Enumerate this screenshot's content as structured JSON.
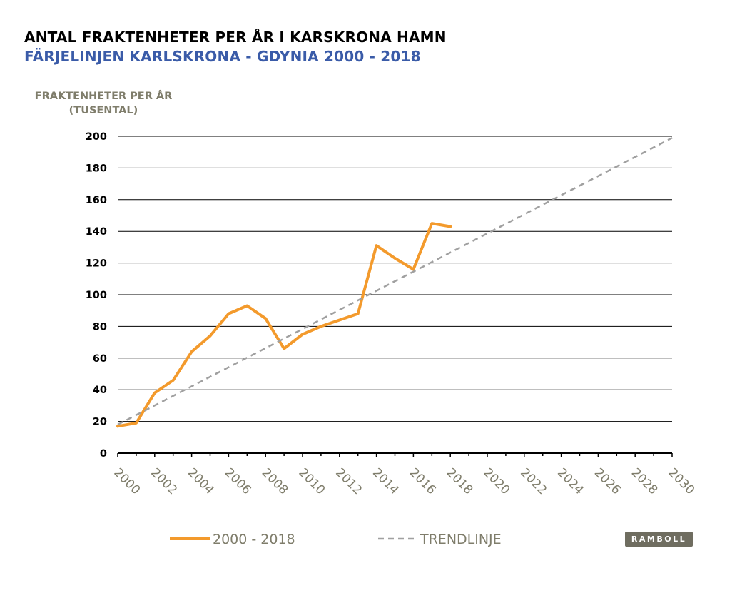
{
  "header": {
    "title": "ANTAL FRAKTENHETER PER ÅR I KARSKRONA HAMN",
    "subtitle": "FÄRJELINJEN KARLSKRONA - GDYNIA 2000 - 2018"
  },
  "logo": {
    "text": "RAMBOLL"
  },
  "colors": {
    "title": "#000000",
    "subtitle": "#3a5ba8",
    "axis_label": "#7f7d6b",
    "series_actual": "#f39a2c",
    "series_trend": "#a0a0a0",
    "grid": "#000000",
    "logo_bg": "#6f6d60"
  },
  "chart_data": {
    "type": "line",
    "title": "ANTAL FRAKTENHETER PER ÅR I KARSKRONA HAMN",
    "subtitle": "FÄRJELINJEN KARLSKRONA - GDYNIA 2000 - 2018",
    "ylabel_lines": [
      "FRAKTENHETER PER ÅR",
      "(TUSENTAL)"
    ],
    "xlabel": "",
    "xlim": [
      2000,
      2030
    ],
    "ylim": [
      0,
      200
    ],
    "x_ticks": [
      2000,
      2002,
      2004,
      2006,
      2008,
      2010,
      2012,
      2014,
      2016,
      2018,
      2020,
      2022,
      2024,
      2026,
      2028,
      2030
    ],
    "y_ticks": [
      0,
      20,
      40,
      60,
      80,
      100,
      120,
      140,
      160,
      180,
      200
    ],
    "grid": "horizontal",
    "legend_position": "bottom",
    "series": [
      {
        "name": "2000 - 2018",
        "style": "solid",
        "color": "#f39a2c",
        "x": [
          2000,
          2001,
          2002,
          2003,
          2004,
          2005,
          2006,
          2007,
          2008,
          2009,
          2010,
          2011,
          2012,
          2013,
          2014,
          2015,
          2016,
          2017,
          2018
        ],
        "y": [
          17,
          19,
          38,
          46,
          64,
          74,
          88,
          93,
          85,
          66,
          75,
          80,
          84,
          88,
          131,
          123,
          116,
          145,
          143
        ]
      },
      {
        "name": "TRENDLINJE",
        "style": "dashed",
        "color": "#a0a0a0",
        "x": [
          2000,
          2030
        ],
        "y": [
          18,
          199
        ]
      }
    ]
  }
}
